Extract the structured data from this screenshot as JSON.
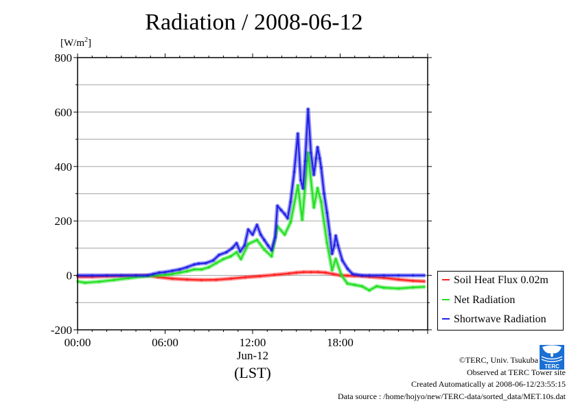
{
  "chart_data": {
    "type": "line",
    "title": "Radiation / 2008-06-12",
    "ylabel_unit": "[W/m",
    "ylabel_unit_sup": "2",
    "ylabel_unit_close": "]",
    "xlabel_date": "Jun-12",
    "xlabel": "(LST)",
    "xlim": [
      0,
      24
    ],
    "ylim": [
      -200,
      800
    ],
    "y_ticks": [
      800,
      600,
      400,
      200,
      0,
      -200
    ],
    "y_tick_labels": [
      "800",
      "600",
      "400",
      "200",
      "0",
      "-200"
    ],
    "x_ticks": [
      0,
      6,
      12,
      18
    ],
    "x_tick_labels": [
      "00:00",
      "06:00",
      "12:00",
      "18:00"
    ],
    "grid": true,
    "legend_position": "right-bottom-outside",
    "series": [
      {
        "name": "Soil Heat Flux 0.02m",
        "color": "#ff2020",
        "x": [
          0,
          1,
          2,
          3,
          4,
          4.8,
          5.5,
          6.5,
          7.5,
          8.5,
          9.5,
          10.5,
          11.5,
          12.5,
          13.5,
          14.5,
          15,
          15.5,
          16,
          16.5,
          17,
          17.5,
          18,
          18.5,
          19,
          19.5,
          20,
          21,
          22,
          23,
          23.8
        ],
        "y": [
          -5,
          -5,
          -3,
          -2,
          -1,
          0,
          -6,
          -12,
          -15,
          -17,
          -16,
          -12,
          -7,
          -3,
          2,
          7,
          10,
          12,
          12,
          12,
          10,
          5,
          0,
          -1,
          -2,
          -3,
          -5,
          -9,
          -15,
          -20,
          -22
        ]
      },
      {
        "name": "Net Radiation",
        "color": "#20e020",
        "x": [
          0,
          0.5,
          1.5,
          2.5,
          3.5,
          4.5,
          5,
          5.5,
          6,
          6.5,
          7,
          7.5,
          8,
          8.5,
          9,
          9.5,
          10,
          10.5,
          10.9,
          11.2,
          11.7,
          12.3,
          12.8,
          13.3,
          13.7,
          14.2,
          14.6,
          15.1,
          15.4,
          15.8,
          16.2,
          16.45,
          16.7,
          17.1,
          17.45,
          17.7,
          18.1,
          18.5,
          19,
          19.5,
          20,
          20.5,
          21,
          22,
          23,
          23.8
        ],
        "y": [
          -22,
          -27,
          -23,
          -17,
          -10,
          -4,
          -2,
          0,
          2,
          5,
          10,
          15,
          22,
          22,
          30,
          45,
          60,
          70,
          85,
          60,
          115,
          130,
          95,
          70,
          180,
          150,
          195,
          330,
          205,
          450,
          250,
          320,
          270,
          120,
          20,
          60,
          0,
          -30,
          -35,
          -40,
          -55,
          -40,
          -45,
          -48,
          -44,
          -42
        ]
      },
      {
        "name": "Shortwave Radiation",
        "color": "#2020e8",
        "x": [
          0,
          1,
          2,
          3,
          4,
          4.8,
          5.2,
          5.6,
          6,
          6.5,
          7,
          7.5,
          8,
          8.3,
          8.8,
          9.3,
          9.7,
          10.2,
          10.6,
          10.9,
          11.15,
          11.45,
          11.7,
          12,
          12.3,
          12.55,
          12.8,
          13.05,
          13.3,
          13.55,
          13.7,
          13.95,
          14.2,
          14.4,
          14.6,
          14.85,
          15.1,
          15.3,
          15.45,
          15.6,
          15.8,
          16,
          16.2,
          16.35,
          16.45,
          16.6,
          16.7,
          16.9,
          17.1,
          17.3,
          17.45,
          17.6,
          17.7,
          17.85,
          18.15,
          18.5,
          18.85,
          19.5,
          20,
          21,
          22,
          23,
          23.8
        ],
        "y": [
          0,
          0,
          0,
          0,
          0,
          0,
          5,
          10,
          12,
          17,
          22,
          30,
          40,
          43,
          45,
          55,
          75,
          85,
          100,
          118,
          88,
          110,
          168,
          150,
          185,
          150,
          130,
          110,
          93,
          140,
          255,
          240,
          225,
          210,
          270,
          380,
          520,
          350,
          320,
          420,
          610,
          450,
          370,
          430,
          470,
          430,
          395,
          300,
          230,
          150,
          80,
          110,
          145,
          110,
          55,
          25,
          5,
          0,
          0,
          0,
          0,
          0,
          0
        ]
      }
    ]
  },
  "credits": {
    "copyright": "©TERC, Univ. Tsukuba",
    "observed": "Observed at TERC Tower site",
    "created": "Created Automatically at 2008-06-12/23:55:15",
    "source": "Data source : /home/hojyo/new/TERC-data/sorted_data/MET.10s.dat",
    "logo_text": "TERC",
    "logo_color": "#1a6fd4"
  }
}
